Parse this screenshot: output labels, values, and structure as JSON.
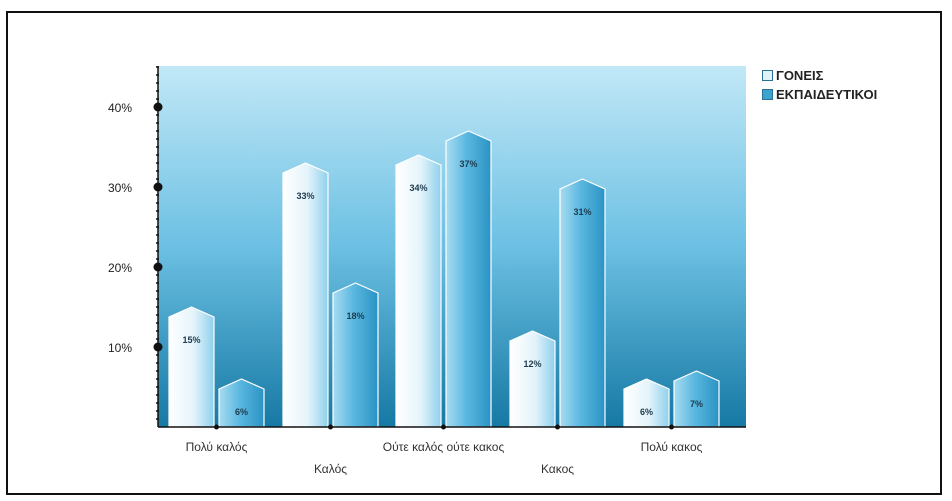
{
  "chart_data": {
    "type": "bar",
    "categories": [
      "Πολύ καλός",
      "Καλός",
      "Ούτε καλός ούτε κακος",
      "Κακος",
      "Πολύ κακος"
    ],
    "series": [
      {
        "name": "ΓΟΝΕΙΣ",
        "values": [
          15,
          33,
          34,
          12,
          6
        ],
        "labels": [
          "15%",
          "33%",
          "34%",
          "12%",
          "6%"
        ]
      },
      {
        "name": "ΕΚΠΑΙΔΕΥΤΙΚΟΙ",
        "values": [
          6,
          18,
          37,
          31,
          7
        ],
        "labels": [
          "6%",
          "18%",
          "37%",
          "31%",
          "7%"
        ]
      }
    ],
    "ylim": [
      0,
      45
    ],
    "yticks": [
      {
        "value": 10,
        "label": "10%"
      },
      {
        "value": 20,
        "label": "20%"
      },
      {
        "value": 30,
        "label": "30%"
      },
      {
        "value": 40,
        "label": "40%"
      }
    ],
    "legend_position": "top-right",
    "colors": {
      "background_top": "#bfe6f6",
      "background_bottom": "#1a7ba6",
      "series_1": "#e6f5fc",
      "series_2": "#3ba3cf",
      "axis": "#111111"
    }
  }
}
